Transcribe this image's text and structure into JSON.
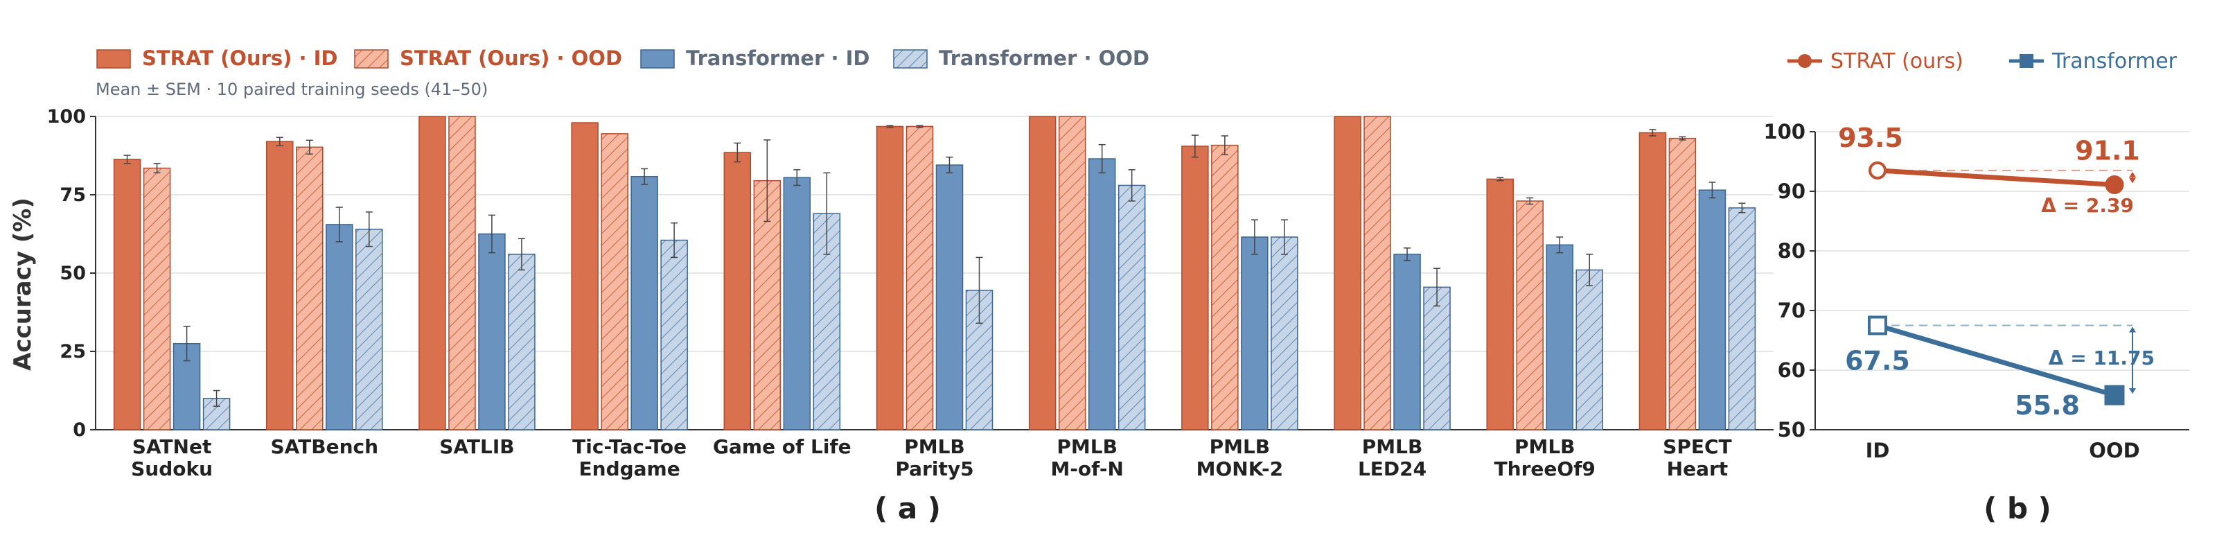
{
  "colors": {
    "strat": "#d9704e",
    "strat_light": "#f6b8a0",
    "strat_edge": "#b04a2c",
    "strat_text": "#c0522f",
    "trans": "#6a93c0",
    "trans_light": "#c6d6e8",
    "trans_edge": "#3a6590",
    "trans_text": "#3b6e98",
    "legend_text_gray": "#5f6b7a",
    "axis": "#333333"
  },
  "chart_data": [
    {
      "type": "bar",
      "panel_label": "( a )",
      "subtitle": "Mean ± SEM · 10 paired training seeds (41–50)",
      "ylabel": "Accuracy (%)",
      "ylim": [
        0,
        100
      ],
      "yticks": [
        0,
        25,
        50,
        75,
        100
      ],
      "legend_placement": "top-left",
      "categories": [
        [
          "SATNet",
          "Sudoku"
        ],
        [
          "SATBench"
        ],
        [
          "SATLIB"
        ],
        [
          "Tic-Tac-Toe",
          "Endgame"
        ],
        [
          "Game of Life"
        ],
        [
          "PMLB",
          "Parity5"
        ],
        [
          "PMLB",
          "M-of-N"
        ],
        [
          "PMLB",
          "MONK-2"
        ],
        [
          "PMLB",
          "LED24"
        ],
        [
          "PMLB",
          "ThreeOf9"
        ],
        [
          "SPECT",
          "Heart"
        ]
      ],
      "series": [
        {
          "name": "STRAT (Ours) · ID",
          "style": "strat-solid",
          "values": [
            86.3,
            92.0,
            100.0,
            98.0,
            88.5,
            96.8,
            100.0,
            90.5,
            100.0,
            80.0,
            94.8
          ],
          "errors": [
            1.3,
            1.3,
            0.0,
            0.0,
            3.0,
            0.3,
            0.0,
            3.5,
            0.0,
            0.5,
            1.0
          ]
        },
        {
          "name": "STRAT (Ours) · OOD",
          "style": "strat-hatch",
          "values": [
            83.5,
            90.2,
            100.0,
            94.5,
            79.5,
            96.8,
            100.0,
            90.8,
            100.0,
            73.0,
            93.0
          ],
          "errors": [
            1.5,
            2.2,
            0.0,
            0.0,
            13.0,
            0.3,
            0.0,
            3.0,
            0.0,
            1.0,
            0.5
          ]
        },
        {
          "name": "Transformer · ID",
          "style": "trans-solid",
          "values": [
            27.5,
            65.5,
            62.5,
            80.8,
            80.5,
            84.5,
            86.5,
            61.5,
            56.0,
            59.0,
            76.5
          ],
          "errors": [
            5.5,
            5.5,
            6.0,
            2.5,
            2.5,
            2.5,
            4.5,
            5.5,
            2.0,
            2.5,
            2.5
          ]
        },
        {
          "name": "Transformer · OOD",
          "style": "trans-hatch",
          "values": [
            10.0,
            64.0,
            56.0,
            60.5,
            69.0,
            44.5,
            78.0,
            61.5,
            45.5,
            51.0,
            70.8
          ],
          "errors": [
            2.5,
            5.5,
            5.0,
            5.5,
            13.0,
            10.5,
            5.0,
            5.5,
            6.0,
            5.0,
            1.5
          ]
        }
      ]
    },
    {
      "type": "line",
      "panel_label": "( b )",
      "ylim": [
        50,
        100
      ],
      "yticks": [
        50,
        60,
        70,
        80,
        90,
        100
      ],
      "categories": [
        "ID",
        "OOD"
      ],
      "legend_placement": "top",
      "series": [
        {
          "name": "STRAT (ours)",
          "marker": "circle",
          "values": [
            93.5,
            91.1
          ],
          "value_labels": [
            "93.5",
            "91.1"
          ],
          "delta_label": "Δ = 2.39"
        },
        {
          "name": "Transformer",
          "marker": "square",
          "values": [
            67.5,
            55.8
          ],
          "value_labels": [
            "67.5",
            "55.8"
          ],
          "delta_label": "Δ = 11.75"
        }
      ]
    }
  ]
}
